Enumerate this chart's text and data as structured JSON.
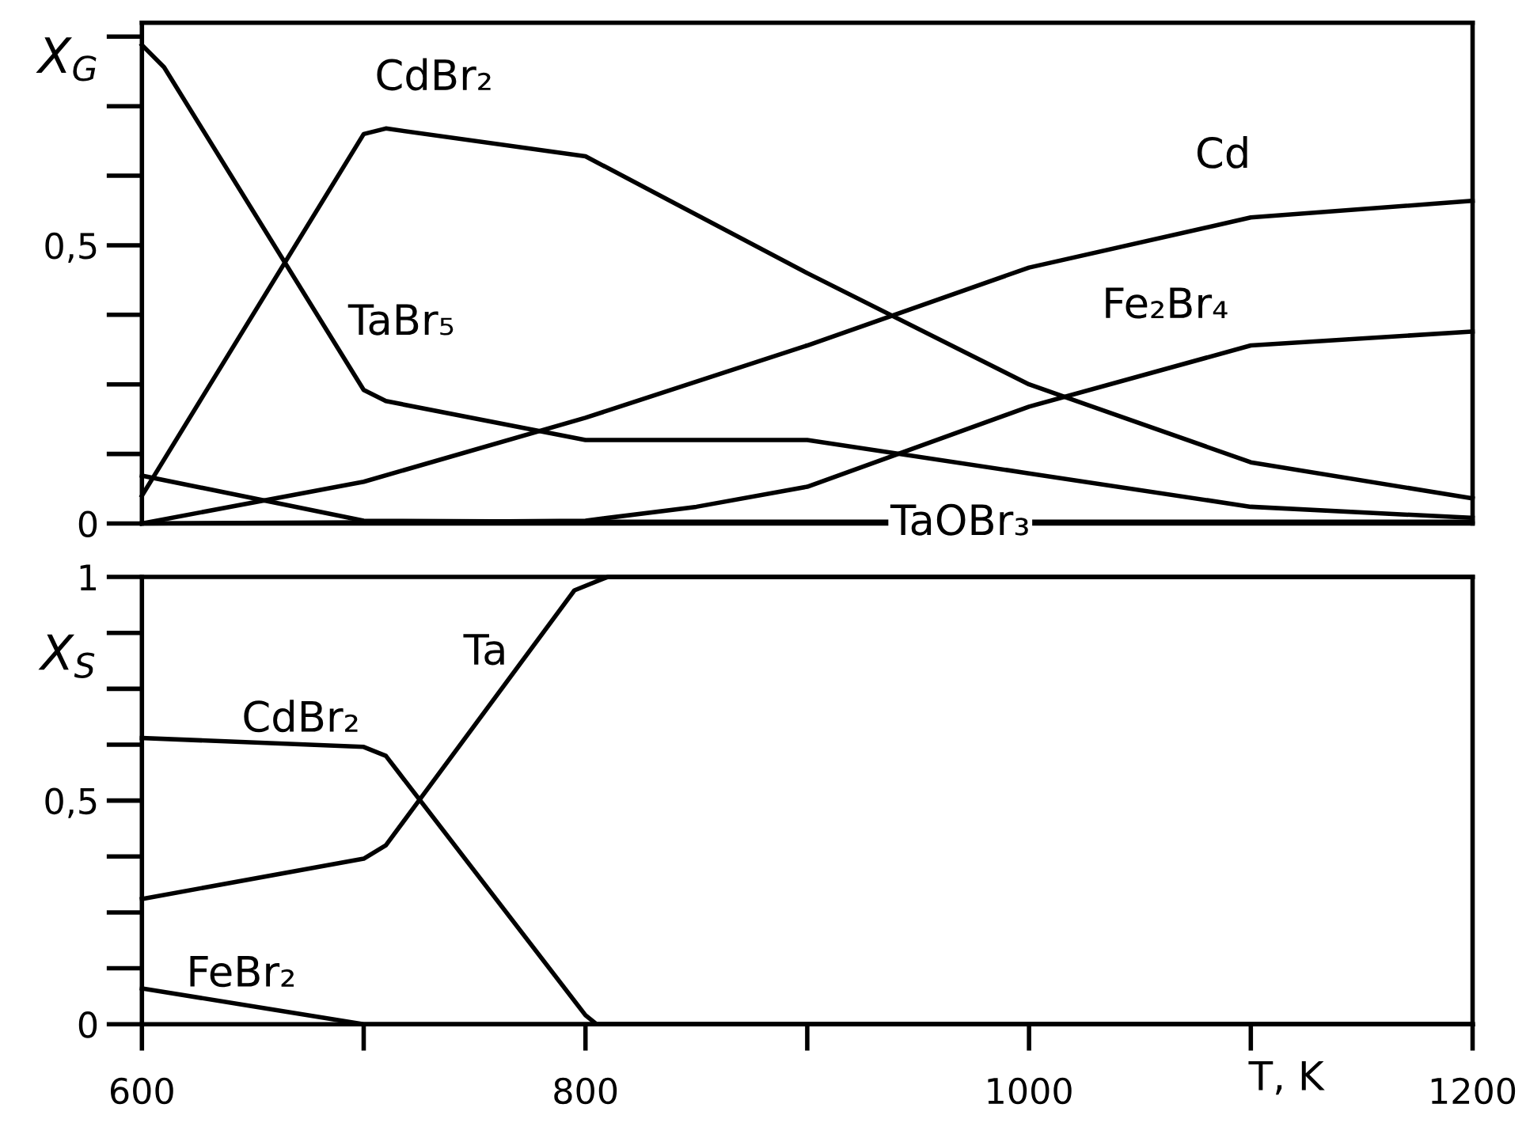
{
  "chart_data": [
    {
      "type": "line",
      "ylabel": "X$_{G}$",
      "xlim": [
        600,
        1200
      ],
      "ylim": [
        0,
        0.9
      ],
      "yticks": [
        0,
        {
          "value": 0.5,
          "label": "0,5"
        }
      ],
      "tick_labels": "y",
      "grid": false,
      "marker": "none",
      "line_style": "solid",
      "series": [
        {
          "name": "CdBr₂",
          "color": "#000000",
          "x": [
            600,
            700,
            710,
            800,
            900,
            1000,
            1100,
            1200
          ],
          "values": [
            0.05,
            0.7,
            0.71,
            0.66,
            0.45,
            0.25,
            0.11,
            0.045
          ]
        },
        {
          "name": "TaBr₅",
          "color": "#000000",
          "x": [
            600,
            610,
            700,
            710,
            800,
            900,
            1000,
            1100,
            1200
          ],
          "values": [
            0.86,
            0.82,
            0.24,
            0.22,
            0.15,
            0.15,
            0.09,
            0.03,
            0.01
          ]
        },
        {
          "name": "Cd",
          "color": "#000000",
          "x": [
            600,
            700,
            800,
            900,
            1000,
            1100,
            1200
          ],
          "values": [
            0,
            0.075,
            0.19,
            0.32,
            0.46,
            0.55,
            0.58
          ]
        },
        {
          "name": "Fe₂Br₄",
          "color": "#000000",
          "x": [
            600,
            700,
            800,
            850,
            900,
            1000,
            1100,
            1200
          ],
          "values": [
            0,
            0.002,
            0.005,
            0.03,
            0.066,
            0.21,
            0.32,
            0.345
          ]
        },
        {
          "name": "TaOBr₃",
          "color": "#000000",
          "x": [
            600,
            700,
            800,
            1200
          ],
          "values": [
            0.086,
            0.005,
            0.003,
            0.003
          ]
        }
      ]
    },
    {
      "type": "line",
      "ylabel": "X$_{S}$",
      "xlabel": "T, K",
      "xlim": [
        600,
        1200
      ],
      "ylim": [
        0,
        1
      ],
      "xticks": [
        600,
        800,
        1000,
        1200
      ],
      "yticks": [
        0,
        {
          "value": 0.5,
          "label": "0,5"
        },
        1
      ],
      "grid": false,
      "marker": "none",
      "line_style": "solid",
      "series": [
        {
          "name": "CdBr₂",
          "color": "#000000",
          "x": [
            600,
            700,
            710,
            800,
            805,
            1200
          ],
          "values": [
            0.64,
            0.62,
            0.6,
            0.02,
            0,
            0
          ]
        },
        {
          "name": "Ta",
          "color": "#000000",
          "x": [
            600,
            700,
            710,
            795,
            810,
            1200
          ],
          "values": [
            0.28,
            0.37,
            0.4,
            0.97,
            1,
            1
          ]
        },
        {
          "name": "FeBr₂",
          "color": "#000000",
          "x": [
            600,
            700,
            1200
          ],
          "values": [
            0.08,
            0,
            0
          ]
        }
      ]
    }
  ]
}
